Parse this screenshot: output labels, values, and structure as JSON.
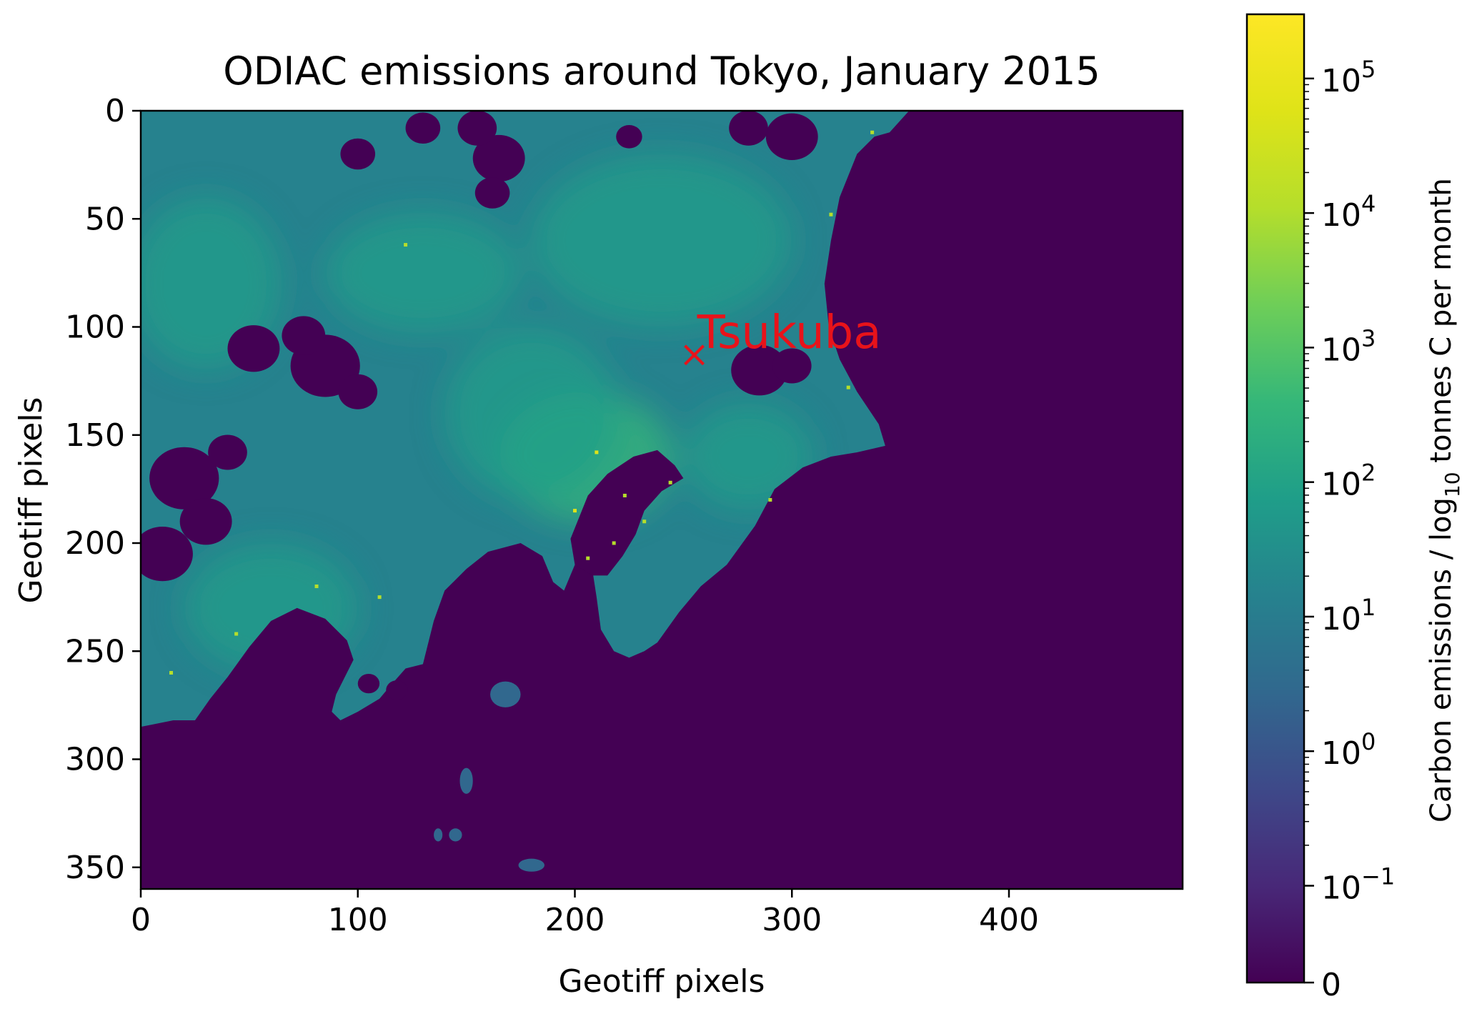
{
  "chart_data": {
    "type": "heatmap",
    "title": "ODIAC emissions around Tokyo, January 2015",
    "xlabel": "Geotiff pixels",
    "ylabel": "Geotiff pixels",
    "xlim": [
      0,
      480
    ],
    "ylim": [
      360,
      0
    ],
    "y_inverted": true,
    "x_ticks": [
      0,
      100,
      200,
      300,
      400
    ],
    "y_ticks": [
      0,
      50,
      100,
      150,
      200,
      250,
      300,
      350
    ],
    "colormap": "viridis",
    "background_value_color": "#440154",
    "annotation": {
      "label": "Tsukuba",
      "marker": "x",
      "x": 255,
      "y": 113,
      "color": "#e8131a"
    },
    "colorbar": {
      "label_prefix": "Carbon emissions / log",
      "label_sub": "10",
      "label_suffix": " tonnes C per month",
      "scale": "symlog",
      "ticks": [
        {
          "value": 0,
          "base": "0",
          "exp": ""
        },
        {
          "value": 0.1,
          "base": "10",
          "exp": "−1"
        },
        {
          "value": 1,
          "base": "10",
          "exp": "0"
        },
        {
          "value": 10,
          "base": "10",
          "exp": "1"
        },
        {
          "value": 100,
          "base": "10",
          "exp": "2"
        },
        {
          "value": 1000,
          "base": "10",
          "exp": "3"
        },
        {
          "value": 10000,
          "base": "10",
          "exp": "4"
        },
        {
          "value": 100000,
          "base": "10",
          "exp": "5"
        }
      ],
      "range": [
        0,
        300000
      ]
    },
    "land_polygon": [
      [
        0,
        0
      ],
      [
        354,
        0
      ],
      [
        345,
        10
      ],
      [
        338,
        12
      ],
      [
        330,
        20
      ],
      [
        322,
        40
      ],
      [
        318,
        60
      ],
      [
        315,
        80
      ],
      [
        317,
        100
      ],
      [
        322,
        115
      ],
      [
        330,
        130
      ],
      [
        340,
        145
      ],
      [
        343,
        155
      ],
      [
        330,
        158
      ],
      [
        318,
        160
      ],
      [
        305,
        165
      ],
      [
        292,
        175
      ],
      [
        283,
        192
      ],
      [
        270,
        210
      ],
      [
        258,
        220
      ],
      [
        248,
        232
      ],
      [
        238,
        246
      ],
      [
        232,
        250
      ],
      [
        225,
        253
      ],
      [
        218,
        250
      ],
      [
        212,
        240
      ],
      [
        210,
        225
      ],
      [
        208,
        212
      ],
      [
        200,
        210
      ],
      [
        195,
        222
      ],
      [
        190,
        218
      ],
      [
        185,
        206
      ],
      [
        175,
        200
      ],
      [
        160,
        204
      ],
      [
        150,
        212
      ],
      [
        140,
        222
      ],
      [
        135,
        236
      ],
      [
        130,
        256
      ],
      [
        122,
        258
      ],
      [
        115,
        266
      ],
      [
        110,
        272
      ],
      [
        100,
        278
      ],
      [
        92,
        282
      ],
      [
        88,
        278
      ],
      [
        90,
        270
      ],
      [
        94,
        262
      ],
      [
        98,
        254
      ],
      [
        95,
        245
      ],
      [
        85,
        235
      ],
      [
        72,
        230
      ],
      [
        60,
        236
      ],
      [
        50,
        248
      ],
      [
        40,
        262
      ],
      [
        32,
        272
      ],
      [
        25,
        282
      ],
      [
        15,
        282
      ],
      [
        5,
        284
      ],
      [
        0,
        285
      ]
    ],
    "bays": [
      [
        [
          206,
          178
        ],
        [
          215,
          168
        ],
        [
          227,
          160
        ],
        [
          238,
          157
        ],
        [
          246,
          164
        ],
        [
          250,
          170
        ],
        [
          240,
          176
        ],
        [
          232,
          185
        ],
        [
          228,
          196
        ],
        [
          222,
          206
        ],
        [
          215,
          215
        ],
        [
          208,
          215
        ],
        [
          200,
          210
        ],
        [
          198,
          198
        ],
        [
          202,
          188
        ]
      ]
    ],
    "hotspots": [
      {
        "x": 210,
        "y": 158,
        "value": 100000
      },
      {
        "x": 200,
        "y": 185,
        "value": 100000
      },
      {
        "x": 223,
        "y": 178,
        "value": 10000
      },
      {
        "x": 232,
        "y": 190,
        "value": 10000
      },
      {
        "x": 244,
        "y": 172,
        "value": 10000
      },
      {
        "x": 290,
        "y": 180,
        "value": 10000
      },
      {
        "x": 318,
        "y": 48,
        "value": 10000
      },
      {
        "x": 122,
        "y": 62,
        "value": 10000
      },
      {
        "x": 81,
        "y": 220,
        "value": 10000
      },
      {
        "x": 110,
        "y": 225,
        "value": 10000
      },
      {
        "x": 337,
        "y": 10,
        "value": 10000
      },
      {
        "x": 326,
        "y": 128,
        "value": 10000
      },
      {
        "x": 44,
        "y": 242,
        "value": 10000
      },
      {
        "x": 14,
        "y": 260,
        "value": 10000
      },
      {
        "x": 206,
        "y": 207,
        "value": 10000
      },
      {
        "x": 218,
        "y": 200,
        "value": 10000
      }
    ],
    "gaps": [
      {
        "x": 52,
        "y": 110,
        "r": 12
      },
      {
        "x": 85,
        "y": 118,
        "r": 16
      },
      {
        "x": 75,
        "y": 104,
        "r": 10
      },
      {
        "x": 100,
        "y": 130,
        "r": 9
      },
      {
        "x": 20,
        "y": 170,
        "r": 16
      },
      {
        "x": 10,
        "y": 205,
        "r": 14
      },
      {
        "x": 30,
        "y": 190,
        "r": 12
      },
      {
        "x": 40,
        "y": 158,
        "r": 9
      },
      {
        "x": 165,
        "y": 22,
        "r": 12
      },
      {
        "x": 155,
        "y": 8,
        "r": 9
      },
      {
        "x": 300,
        "y": 12,
        "r": 12
      },
      {
        "x": 280,
        "y": 8,
        "r": 9
      },
      {
        "x": 162,
        "y": 38,
        "r": 8
      },
      {
        "x": 285,
        "y": 120,
        "r": 13
      },
      {
        "x": 300,
        "y": 118,
        "r": 9
      },
      {
        "x": 100,
        "y": 20,
        "r": 8
      },
      {
        "x": 130,
        "y": 8,
        "r": 8
      },
      {
        "x": 225,
        "y": 12,
        "r": 6
      },
      {
        "x": 105,
        "y": 265,
        "r": 5
      },
      {
        "x": 118,
        "y": 268,
        "r": 5
      }
    ],
    "islands": [
      {
        "x": 168,
        "y": 270,
        "rx": 7,
        "ry": 6
      },
      {
        "x": 180,
        "y": 349,
        "rx": 6,
        "ry": 3
      },
      {
        "x": 150,
        "y": 310,
        "rx": 3,
        "ry": 6
      },
      {
        "x": 145,
        "y": 335,
        "rx": 3,
        "ry": 3
      },
      {
        "x": 137,
        "y": 335,
        "rx": 2,
        "ry": 3
      }
    ],
    "warm_areas": [
      {
        "x": 205,
        "y": 160,
        "rx": 40,
        "ry": 30,
        "value": 300
      },
      {
        "x": 130,
        "y": 75,
        "rx": 45,
        "ry": 28,
        "value": 150
      },
      {
        "x": 240,
        "y": 60,
        "rx": 60,
        "ry": 40,
        "value": 60
      },
      {
        "x": 60,
        "y": 230,
        "rx": 40,
        "ry": 30,
        "value": 80
      },
      {
        "x": 180,
        "y": 140,
        "rx": 40,
        "ry": 40,
        "value": 150
      },
      {
        "x": 280,
        "y": 160,
        "rx": 30,
        "ry": 25,
        "value": 60
      },
      {
        "x": 30,
        "y": 80,
        "rx": 35,
        "ry": 40,
        "value": 60
      }
    ]
  }
}
